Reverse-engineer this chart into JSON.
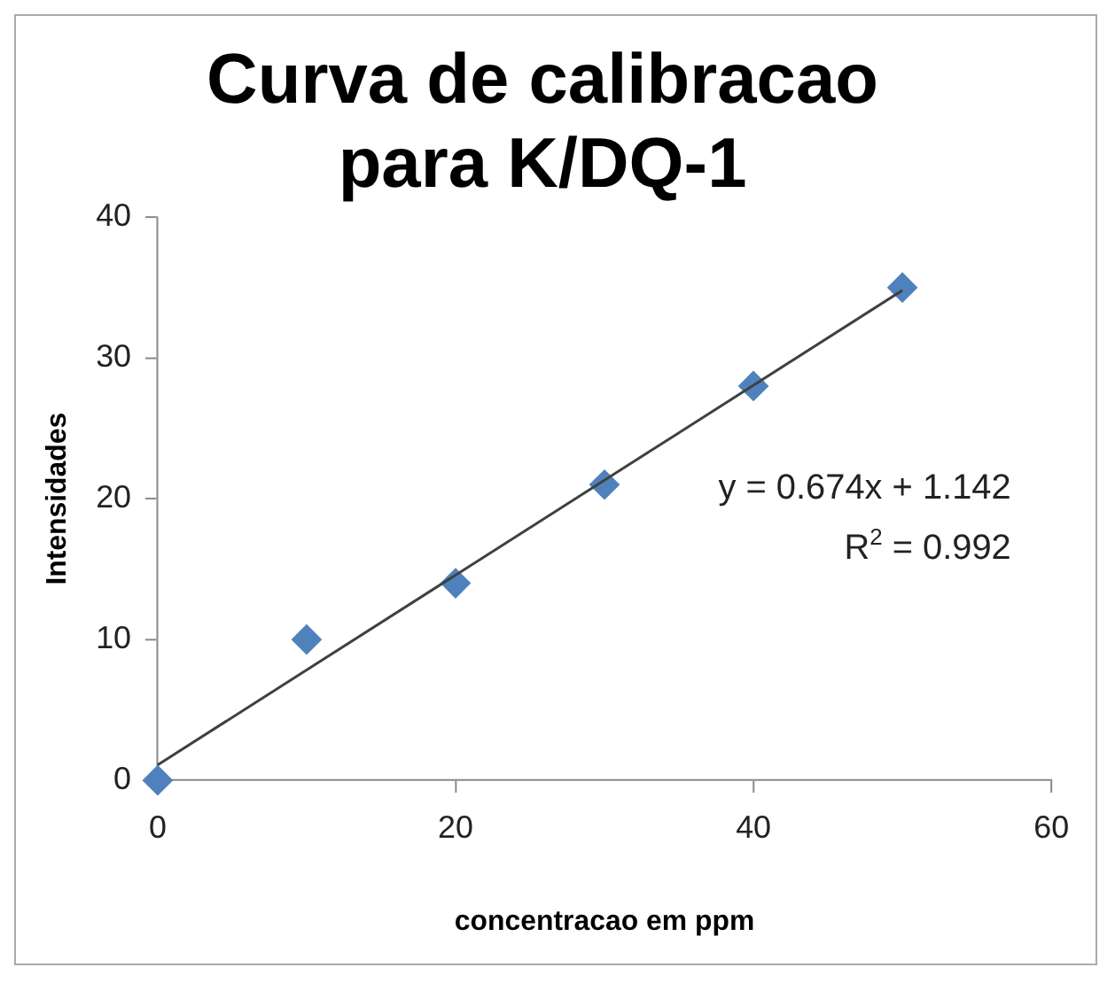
{
  "chart_data": {
    "type": "scatter",
    "title": "Curva de calibracao\npara K/DQ-1",
    "xlabel": "concentracao em ppm",
    "ylabel": "Intensidades",
    "series": [
      {
        "type": "scatter",
        "color": "#4f81bd",
        "x": [
          0,
          10,
          20,
          30,
          40,
          50
        ],
        "values": [
          0,
          10,
          14,
          21,
          28,
          35
        ],
        "marker": "diamond"
      },
      {
        "type": "line",
        "color": "#404040",
        "x": [
          0,
          50
        ],
        "values": [
          1.1,
          34.8
        ],
        "marker": "none",
        "line_style": "solid"
      }
    ],
    "annotations": [
      "y = 0.674x + 1.142",
      "R$^{2}$ = 0.992"
    ],
    "xlim": [
      0,
      60
    ],
    "ylim": [
      0,
      40
    ],
    "xticks": [
      0,
      20,
      40,
      60
    ],
    "yticks": [
      0,
      10,
      20,
      30,
      40
    ],
    "grid": false,
    "legend": false
  }
}
